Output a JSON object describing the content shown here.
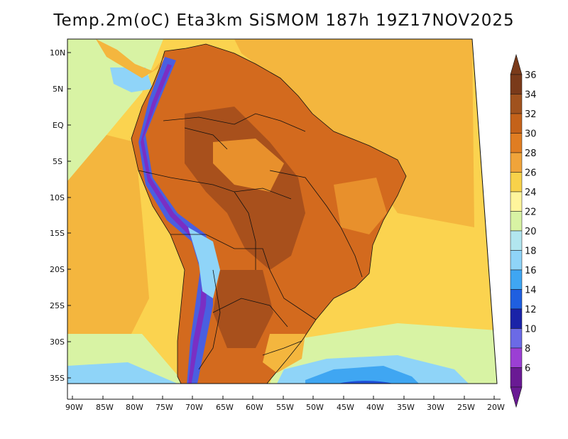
{
  "title": "Temp.2m(oC) Eta3km SiSMOM 187h 19Z17NOV2025",
  "lat_labels": [
    "10N",
    "5N",
    "EQ",
    "5S",
    "10S",
    "15S",
    "20S",
    "25S",
    "30S",
    "35S"
  ],
  "lon_labels": [
    "90W",
    "85W",
    "80W",
    "75W",
    "70W",
    "65W",
    "60W",
    "55W",
    "50W",
    "45W",
    "40W",
    "35W",
    "30W",
    "25W",
    "20W"
  ],
  "colorbar": {
    "labels": [
      "36",
      "34",
      "32",
      "30",
      "28",
      "26",
      "24",
      "22",
      "20",
      "18",
      "16",
      "14",
      "12",
      "10",
      "8",
      "6"
    ],
    "colors": [
      "#7a3a1a",
      "#a0521e",
      "#c4621a",
      "#e07d22",
      "#f0a43a",
      "#f8d24a",
      "#fff59c",
      "#d8f3a4",
      "#b2e6ef",
      "#8fd4f8",
      "#3fa6f2",
      "#1f5fe0",
      "#1a23a8",
      "#6b6ae6",
      "#9b3fd4",
      "#6a1a94"
    ]
  },
  "map_colors": {
    "ocean_warm": "#f4b63e",
    "ocean_mid": "#fbd34f",
    "ocean_cool": "#d8f3a4",
    "ocean_cold": "#8fd4f8",
    "ocean_colder": "#3fa6f2",
    "ocean_coldest": "#1f4fd8",
    "land_hot": "#d36a1e",
    "land_very_hot": "#a8501c",
    "land_warm": "#e8902c",
    "andes_cold": "#4a5fe0",
    "andes_purple": "#7a2fc4",
    "pacific_east": "#b2e6ef"
  }
}
